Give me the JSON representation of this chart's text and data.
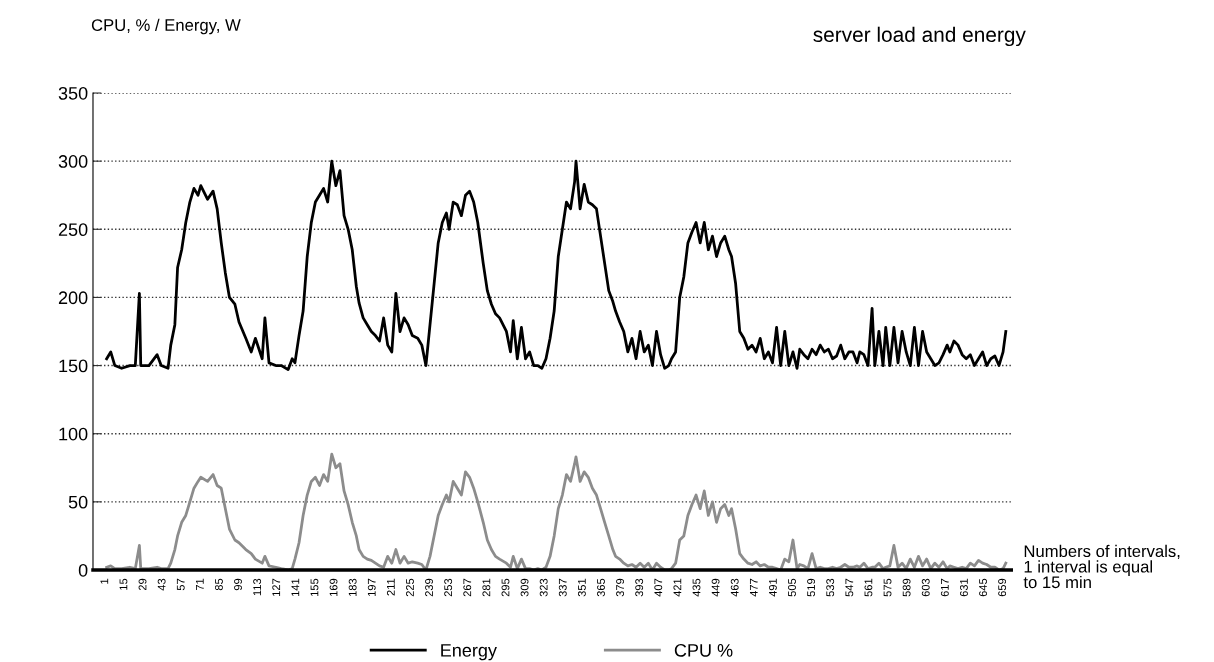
{
  "chart_data": {
    "type": "line",
    "title": "server load and energy",
    "ylabel": "CPU, % / Energy, W",
    "xlabel": "Numbers of intervals,\n1 interval is equal\nto 15 min",
    "x": [
      2,
      5,
      8,
      13,
      19,
      23,
      26,
      27,
      33,
      39,
      42,
      47,
      49,
      52,
      54,
      57,
      60,
      63,
      66,
      69,
      71,
      76,
      80,
      83,
      86,
      89,
      92,
      96,
      99,
      104,
      108,
      111,
      116,
      118,
      121,
      126,
      130,
      135,
      138,
      140,
      143,
      146,
      149,
      152,
      155,
      158,
      161,
      164,
      167,
      170,
      173,
      176,
      179,
      182,
      185,
      187,
      190,
      193,
      196,
      199,
      202,
      205,
      208,
      211,
      214,
      217,
      220,
      223,
      226,
      230,
      233,
      236,
      239,
      242,
      245,
      248,
      251,
      253,
      256,
      259,
      262,
      265,
      268,
      271,
      274,
      278,
      281,
      284,
      287,
      290,
      295,
      298,
      300,
      303,
      306,
      309,
      312,
      315,
      318,
      321,
      324,
      327,
      330,
      333,
      336,
      339,
      342,
      345,
      346,
      349,
      352,
      355,
      358,
      361,
      364,
      367,
      370,
      373,
      375,
      378,
      381,
      384,
      387,
      390,
      393,
      396,
      399,
      402,
      405,
      408,
      411,
      414,
      416,
      419,
      422,
      425,
      428,
      431,
      434,
      437,
      440,
      443,
      446,
      449,
      452,
      455,
      458,
      460,
      463,
      466,
      469,
      472,
      475,
      478,
      481,
      484,
      487,
      490,
      493,
      496,
      499,
      502,
      505,
      508,
      510,
      513,
      516,
      519,
      522,
      525,
      528,
      531,
      534,
      537,
      540,
      543,
      546,
      549,
      552,
      554,
      557,
      560,
      563,
      565,
      568,
      571,
      573,
      576,
      579,
      582,
      585,
      588,
      591,
      594,
      597,
      600,
      603,
      606,
      609,
      612,
      615,
      618,
      620,
      623,
      626,
      629,
      632,
      635,
      638,
      641,
      644,
      647,
      650,
      653,
      656,
      659,
      661
    ],
    "series": [
      {
        "name": "Energy",
        "color": "#000000",
        "values": [
          155,
          160,
          150,
          148,
          150,
          150,
          203,
          150,
          150,
          158,
          150,
          148,
          165,
          180,
          222,
          235,
          255,
          270,
          280,
          275,
          282,
          272,
          278,
          265,
          240,
          218,
          200,
          195,
          182,
          170,
          160,
          170,
          155,
          185,
          152,
          150,
          150,
          147,
          155,
          152,
          172,
          190,
          230,
          255,
          270,
          275,
          280,
          270,
          300,
          282,
          293,
          260,
          250,
          235,
          208,
          196,
          185,
          180,
          175,
          172,
          168,
          185,
          165,
          160,
          203,
          175,
          185,
          180,
          172,
          170,
          165,
          150,
          180,
          210,
          240,
          255,
          262,
          250,
          270,
          268,
          260,
          275,
          278,
          270,
          255,
          225,
          205,
          195,
          188,
          185,
          175,
          160,
          183,
          155,
          178,
          155,
          160,
          150,
          150,
          148,
          155,
          170,
          190,
          230,
          250,
          270,
          265,
          285,
          300,
          265,
          283,
          270,
          268,
          265,
          245,
          225,
          205,
          197,
          190,
          182,
          175,
          160,
          170,
          155,
          175,
          160,
          165,
          150,
          175,
          158,
          148,
          150,
          155,
          160,
          200,
          215,
          240,
          248,
          255,
          240,
          255,
          235,
          245,
          230,
          240,
          245,
          235,
          230,
          210,
          175,
          170,
          162,
          165,
          160,
          170,
          155,
          160,
          152,
          178,
          150,
          175,
          150,
          160,
          148,
          162,
          158,
          155,
          162,
          158,
          165,
          160,
          162,
          155,
          157,
          165,
          155,
          160,
          160,
          152,
          160,
          158,
          150,
          192,
          150,
          175,
          150,
          178,
          150,
          178,
          152,
          175,
          160,
          150,
          178,
          150,
          175,
          160,
          155,
          150,
          152,
          158,
          165,
          160,
          168,
          165,
          158,
          155,
          158,
          150,
          155,
          160,
          150,
          155,
          157,
          150,
          160,
          175
        ]
      },
      {
        "name": "CPU %",
        "color": "#8c8c8c",
        "values": [
          2,
          3,
          1,
          1,
          2,
          1,
          18,
          1,
          1,
          2,
          1,
          1,
          5,
          15,
          25,
          35,
          40,
          50,
          60,
          65,
          68,
          65,
          70,
          62,
          60,
          45,
          30,
          22,
          20,
          15,
          12,
          8,
          5,
          10,
          3,
          2,
          1,
          0,
          1,
          8,
          20,
          40,
          55,
          65,
          68,
          62,
          70,
          65,
          85,
          75,
          78,
          58,
          48,
          35,
          25,
          15,
          10,
          8,
          7,
          5,
          3,
          2,
          10,
          5,
          15,
          5,
          10,
          5,
          6,
          5,
          4,
          0,
          10,
          25,
          40,
          48,
          55,
          50,
          65,
          60,
          55,
          72,
          68,
          60,
          50,
          35,
          22,
          15,
          10,
          8,
          5,
          2,
          10,
          1,
          8,
          1,
          1,
          0,
          1,
          0,
          2,
          10,
          25,
          45,
          55,
          70,
          65,
          78,
          83,
          65,
          72,
          68,
          60,
          55,
          45,
          35,
          25,
          15,
          10,
          8,
          5,
          3,
          4,
          2,
          5,
          2,
          5,
          0,
          5,
          2,
          0,
          0,
          1,
          5,
          22,
          25,
          40,
          48,
          55,
          45,
          58,
          40,
          50,
          35,
          45,
          48,
          40,
          45,
          30,
          12,
          8,
          5,
          4,
          6,
          3,
          4,
          2,
          2,
          1,
          0,
          8,
          6,
          22,
          1,
          4,
          3,
          1,
          12,
          1,
          2,
          1,
          1,
          2,
          1,
          2,
          4,
          2,
          2,
          3,
          2,
          5,
          1,
          2,
          2,
          5,
          1,
          2,
          3,
          18,
          2,
          5,
          1,
          8,
          2,
          10,
          3,
          8,
          1,
          5,
          2,
          6,
          1,
          3,
          2,
          1,
          2,
          1,
          5,
          3,
          7,
          5,
          4,
          2,
          2,
          0,
          1,
          5
        ]
      }
    ],
    "xlim": [
      -8,
      665
    ],
    "xticks": [
      1,
      15,
      29,
      43,
      57,
      71,
      85,
      99,
      113,
      127,
      141,
      155,
      169,
      183,
      197,
      211,
      225,
      239,
      253,
      267,
      281,
      295,
      309,
      323,
      337,
      351,
      365,
      379,
      393,
      407,
      421,
      435,
      449,
      463,
      477,
      491,
      505,
      519,
      533,
      547,
      561,
      575,
      589,
      603,
      617,
      631,
      645,
      659
    ],
    "ylim": [
      0,
      350
    ],
    "yticks": [
      0,
      50,
      100,
      150,
      200,
      250,
      300,
      350
    ],
    "grid": "y",
    "legend": "bottom",
    "marker": "none",
    "line_style": "solid"
  }
}
